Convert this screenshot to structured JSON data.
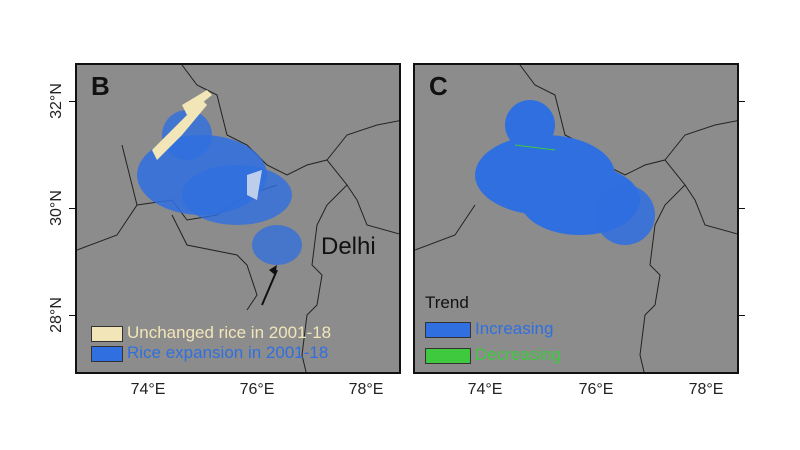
{
  "panels": [
    {
      "letter": "B",
      "annotation": "Delhi",
      "legend": [
        {
          "label": "Unchanged rice in 2001-18",
          "color": "#f2e6b8"
        },
        {
          "label": "Rice expansion in 2001-18",
          "color": "#2f6fe0"
        }
      ]
    },
    {
      "letter": "C",
      "legend_title": "Trend",
      "legend": [
        {
          "label": "Increasing",
          "color": "#2f6fe0"
        },
        {
          "label": "Decreasing",
          "color": "#3fc93f"
        }
      ]
    }
  ],
  "y_ticks": [
    "32°N",
    "30°N",
    "28°N"
  ],
  "x_ticks": [
    "74°E",
    "76°E",
    "78°E"
  ],
  "colors": {
    "background": "#8c8c8c",
    "border": "#222222"
  }
}
